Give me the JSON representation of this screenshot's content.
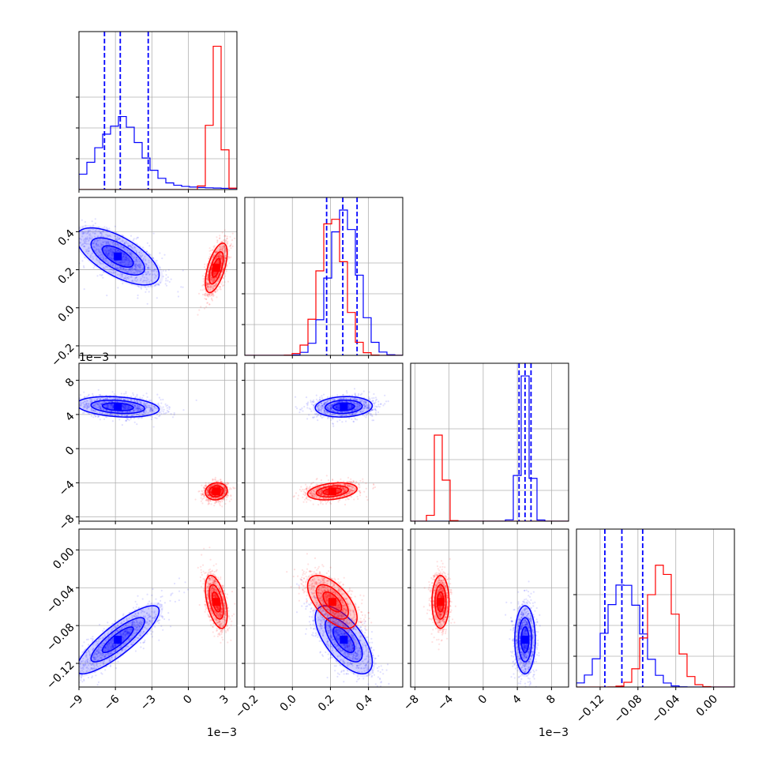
{
  "colors": {
    "series_a": "#0000ff",
    "series_b": "#ff0000",
    "grid": "#b0b0b0"
  },
  "chart_data": {
    "type": "corner",
    "grid": true,
    "parameters": [
      {
        "range": [
          -0.009,
          0.004
        ],
        "ticks": [
          -0.009,
          -0.006,
          -0.003,
          0,
          0.003
        ],
        "tick_labels": [
          "−9",
          "−6",
          "−3",
          "0",
          "3"
        ],
        "offset_label": "1e−3"
      },
      {
        "range": [
          -0.25,
          0.58
        ],
        "ticks": [
          -0.2,
          0.0,
          0.2,
          0.4
        ],
        "tick_labels": [
          "−0.2",
          "0.0",
          "0.2",
          "0.4"
        ],
        "offset_label": ""
      },
      {
        "range": [
          -0.0085,
          0.01
        ],
        "ticks": [
          -0.008,
          -0.004,
          0,
          0.004,
          0.008
        ],
        "tick_labels": [
          "−8",
          "−4",
          "0",
          "4",
          "8"
        ],
        "offset_label": "1e−3"
      },
      {
        "range": [
          -0.145,
          0.022
        ],
        "ticks": [
          -0.12,
          -0.08,
          -0.04,
          0.0
        ],
        "tick_labels": [
          "−0.12",
          "−0.08",
          "−0.04",
          "0.00"
        ],
        "offset_label": ""
      }
    ],
    "series": [
      {
        "color": "series_a",
        "mean": [
          -0.0058,
          0.27,
          0.0049,
          -0.095
        ],
        "sd": [
          0.0017,
          0.075,
          0.0006,
          0.018
        ],
        "corr": [
          [
            1,
            -0.65,
            -0.25,
            0.85
          ],
          [
            -0.65,
            1,
            0.1,
            -0.65
          ],
          [
            -0.25,
            0.1,
            1,
            0.0
          ],
          [
            0.85,
            -0.65,
            0.0,
            1
          ]
        ],
        "quantiles": [
          [
            -0.0069,
            -0.0056,
            -0.0033
          ],
          [
            0.18,
            0.265,
            0.34
          ],
          [
            0.0042,
            0.0049,
            0.0056
          ],
          [
            -0.115,
            -0.097,
            -0.075
          ]
        ],
        "hist_peak": [
          0.52,
          1.0,
          1.0,
          0.72
        ]
      },
      {
        "color": "series_b",
        "mean": [
          0.0023,
          0.21,
          -0.005,
          -0.055
        ],
        "sd": [
          0.00045,
          0.065,
          0.0005,
          0.014
        ],
        "corr": [
          [
            1,
            0.6,
            0.1,
            -0.5
          ],
          [
            0.6,
            1,
            0.3,
            -0.6
          ],
          [
            0.1,
            0.3,
            1,
            0.0
          ],
          [
            -0.5,
            -0.6,
            0.0,
            1
          ]
        ],
        "quantiles": [],
        "hist_peak": [
          1.0,
          0.97,
          0.68,
          0.85
        ]
      }
    ]
  }
}
